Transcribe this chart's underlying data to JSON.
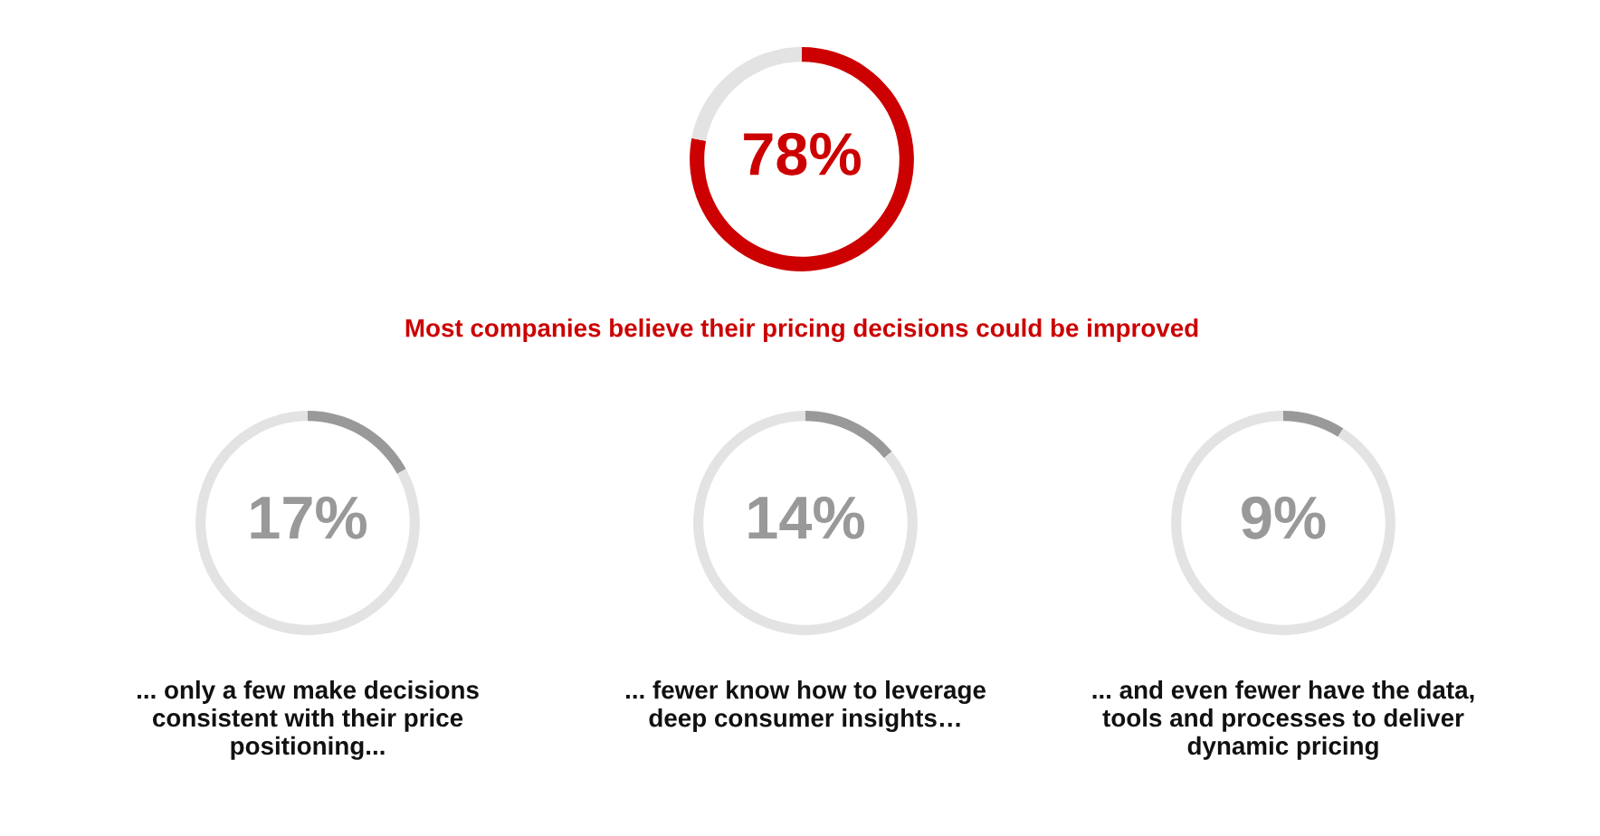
{
  "chart_data": [
    {
      "type": "donut",
      "categories": [
        null,
        null
      ],
      "values": [
        78,
        22
      ],
      "colors": [
        "#cc0000",
        "#e3e3e3"
      ],
      "value_labels": [
        "78%",
        null
      ],
      "annotations": [
        "Most companies believe their pricing decisions could be improved"
      ]
    },
    {
      "type": "donut",
      "categories": [
        null,
        null
      ],
      "values": [
        17,
        83
      ],
      "colors": [
        "#999999",
        "#e3e3e3"
      ],
      "value_labels": [
        "17%",
        null
      ],
      "annotations": [
        "... only a few make decisions\nconsistent with their price\npositioning..."
      ]
    },
    {
      "type": "donut",
      "categories": [
        null,
        null
      ],
      "values": [
        14,
        86
      ],
      "colors": [
        "#999999",
        "#e3e3e3"
      ],
      "value_labels": [
        "14%",
        null
      ],
      "annotations": [
        "... fewer know how to leverage\ndeep consumer insights…"
      ]
    },
    {
      "type": "donut",
      "categories": [
        null,
        null
      ],
      "values": [
        9,
        91
      ],
      "colors": [
        "#999999",
        "#e3e3e3"
      ],
      "value_labels": [
        "9%",
        null
      ],
      "annotations": [
        "... and even fewer have the data,\ntools and processes to deliver\ndynamic pricing"
      ]
    }
  ]
}
